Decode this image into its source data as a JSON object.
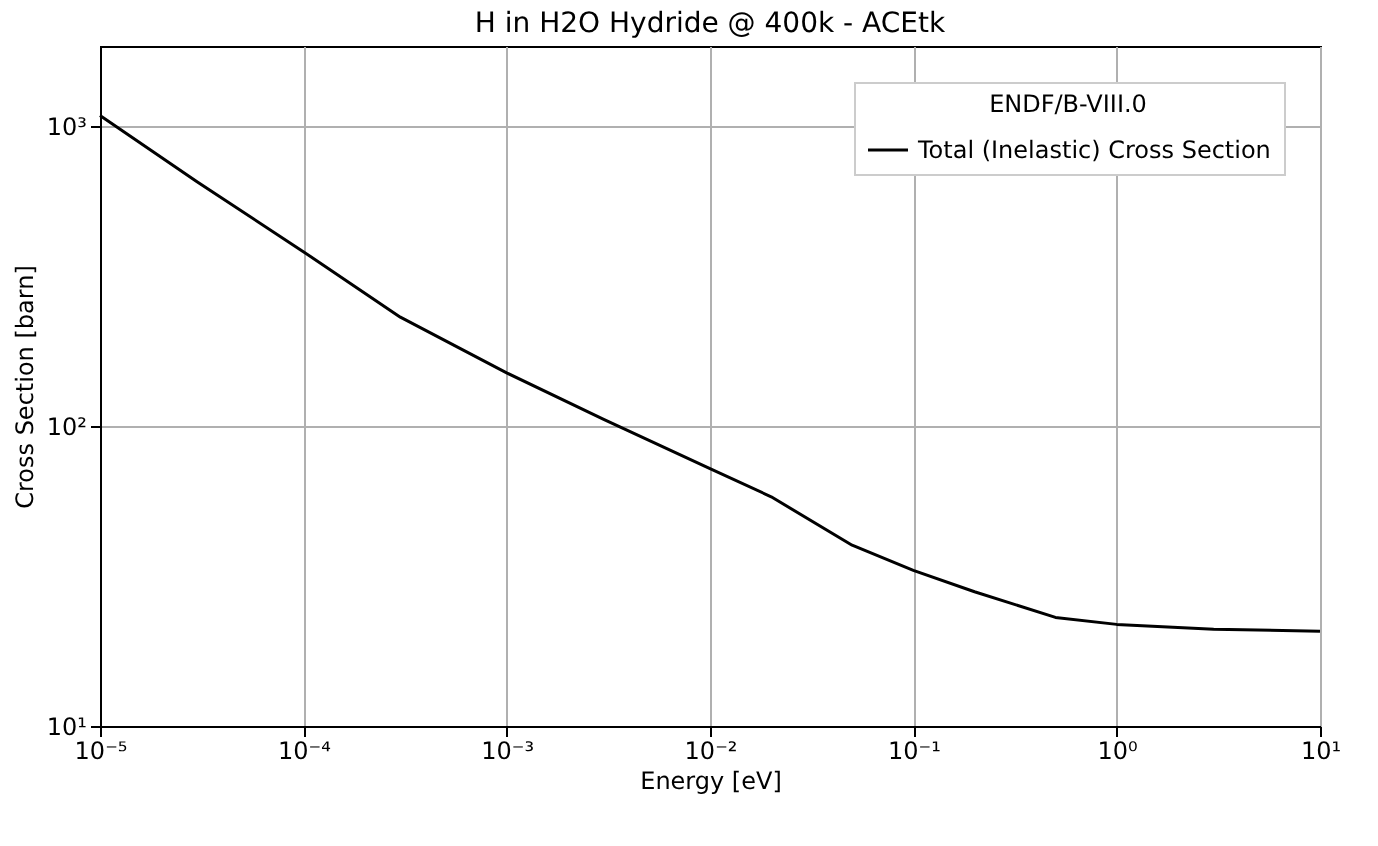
{
  "chart_data": {
    "type": "line",
    "title": "H in H2O Hydride @ 400k - ACEtk",
    "xlabel": "Energy [eV]",
    "ylabel": "Cross Section [barn]",
    "legend_title": "ENDF/B-VIII.0",
    "log": "xy",
    "grid": true,
    "legend": "top right",
    "line_style": "solid",
    "marker": "none",
    "xlim": [
      1e-05,
      10
    ],
    "ylim": [
      10,
      1840
    ],
    "xticks": [
      {
        "value": 1e-05,
        "label": "10⁻⁵"
      },
      {
        "value": 0.0001,
        "label": "10⁻⁴"
      },
      {
        "value": 0.001,
        "label": "10⁻³"
      },
      {
        "value": 0.01,
        "label": "10⁻²"
      },
      {
        "value": 0.1,
        "label": "10⁻¹"
      },
      {
        "value": 1,
        "label": "10⁰"
      },
      {
        "value": 10,
        "label": "10¹"
      }
    ],
    "yticks": [
      {
        "value": 10,
        "label": "10¹"
      },
      {
        "value": 100,
        "label": "10²"
      },
      {
        "value": 1000,
        "label": "10³"
      }
    ],
    "x": [
      1e-05,
      3e-05,
      0.0001,
      0.0003,
      0.001,
      0.003,
      0.01,
      0.02,
      0.05,
      0.1,
      0.2,
      0.5,
      1,
      3,
      10
    ],
    "series": [
      {
        "name": "Total (Inelastic) Cross Section",
        "color": "#000000",
        "values": [
          1080,
          650,
          380,
          230,
          150,
          105,
          72,
          58,
          40,
          33,
          28,
          23,
          21.8,
          21,
          20.7
        ]
      }
    ]
  }
}
